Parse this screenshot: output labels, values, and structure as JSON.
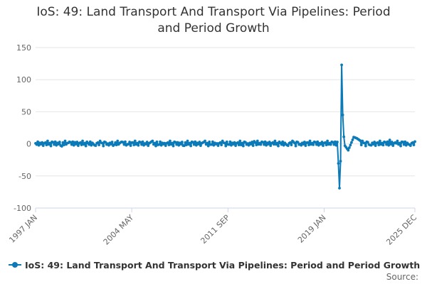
{
  "title_line1": "IoS: 49: Land Transport And Transport Via Pipelines: Period",
  "title_line2": "and Period Growth",
  "source_label": "Source:",
  "chart_data": {
    "type": "line",
    "title": "IoS: 49: Land Transport And Transport Via Pipelines: Period and Period Growth",
    "xlabel": "",
    "ylabel": "",
    "ylim": [
      -100,
      150
    ],
    "yticks": [
      150,
      100,
      50,
      0,
      -50,
      -100
    ],
    "grid": true,
    "legend": "bottom",
    "xrange": [
      "1997 JAN",
      "2025 DEC"
    ],
    "xtick_labels": [
      "1997 JAN",
      "2004 MAY",
      "2011 SEP",
      "2019 JAN",
      "2025 DEC"
    ],
    "series": [
      {
        "name": "IoS: 49: Land Transport And Transport Via Pipelines: Period and Period Growth",
        "color": "#0b7ab8",
        "note_baseline_noise": "monthly values oscillate roughly between -5 and +6 outside the 2020 spike",
        "points": [
          [
            "1997 JAN",
            0.8
          ],
          [
            "1997 JUL",
            2.1
          ],
          [
            "1998 JAN",
            -0.9
          ],
          [
            "1998 JUL",
            3.2
          ],
          [
            "1999 JAN",
            -3.8
          ],
          [
            "1999 JUL",
            1.5
          ],
          [
            "2000 JAN",
            2.4
          ],
          [
            "2000 JUL",
            -1.6
          ],
          [
            "2001 JAN",
            0.9
          ],
          [
            "2001 JUL",
            -2.2
          ],
          [
            "2002 JAN",
            1.8
          ],
          [
            "2002 JUL",
            0.4
          ],
          [
            "2003 JAN",
            -1.3
          ],
          [
            "2003 JUL",
            2.6
          ],
          [
            "2004 JAN",
            -0.6
          ],
          [
            "2004 MAY",
            1.9
          ],
          [
            "2004 NOV",
            -2.4
          ],
          [
            "2005 MAY",
            0.7
          ],
          [
            "2005 NOV",
            3.4
          ],
          [
            "2006 MAY",
            -1.5
          ],
          [
            "2006 NOV",
            1.1
          ],
          [
            "2007 MAY",
            -0.8
          ],
          [
            "2007 NOV",
            2.3
          ],
          [
            "2008 MAY",
            -2.9
          ],
          [
            "2008 NOV",
            -3.2
          ],
          [
            "2009 MAY",
            1.4
          ],
          [
            "2009 NOV",
            2.7
          ],
          [
            "2010 MAY",
            -1.2
          ],
          [
            "2010 NOV",
            0.6
          ],
          [
            "2011 MAY",
            1.8
          ],
          [
            "2011 SEP",
            -0.9
          ],
          [
            "2012 MAR",
            2.2
          ],
          [
            "2012 SEP",
            -1.7
          ],
          [
            "2013 MAR",
            0.5
          ],
          [
            "2013 SEP",
            3.9
          ],
          [
            "2014 MAR",
            -1.1
          ],
          [
            "2014 SEP",
            1.6
          ],
          [
            "2015 MAR",
            -0.7
          ],
          [
            "2015 SEP",
            1.3
          ],
          [
            "2016 MAR",
            -1.9
          ],
          [
            "2016 SEP",
            2.8
          ],
          [
            "2017 MAR",
            -0.4
          ],
          [
            "2017 SEP",
            1.7
          ],
          [
            "2018 MAR",
            -1.4
          ],
          [
            "2018 SEP",
            0.9
          ],
          [
            "2019 JAN",
            1.2
          ],
          [
            "2019 JUL",
            -1.1
          ],
          [
            "2020 JAN",
            2.9
          ],
          [
            "2020 FEB",
            -30.5
          ],
          [
            "2020 MAR",
            -69.0
          ],
          [
            "2020 APR",
            -27.0
          ],
          [
            "2020 MAY",
            123.0
          ],
          [
            "2020 JUN",
            45.0
          ],
          [
            "2020 JUL",
            11.0
          ],
          [
            "2020 AUG",
            -3.0
          ],
          [
            "2020 NOV",
            -10.0
          ],
          [
            "2021 JAN",
            -2.0
          ],
          [
            "2021 APR",
            10.5
          ],
          [
            "2021 JUL",
            8.5
          ],
          [
            "2021 OCT",
            5.0
          ],
          [
            "2022 JAN",
            1.5
          ],
          [
            "2022 JUL",
            -1.8
          ],
          [
            "2023 JAN",
            1.2
          ],
          [
            "2023 JUL",
            -2.0
          ],
          [
            "2024 JAN",
            6.0
          ],
          [
            "2024 JUL",
            0.8
          ],
          [
            "2025 JAN",
            2.8
          ],
          [
            "2025 JUL",
            -1.3
          ],
          [
            "2025 DEC",
            3.5
          ]
        ]
      }
    ]
  }
}
